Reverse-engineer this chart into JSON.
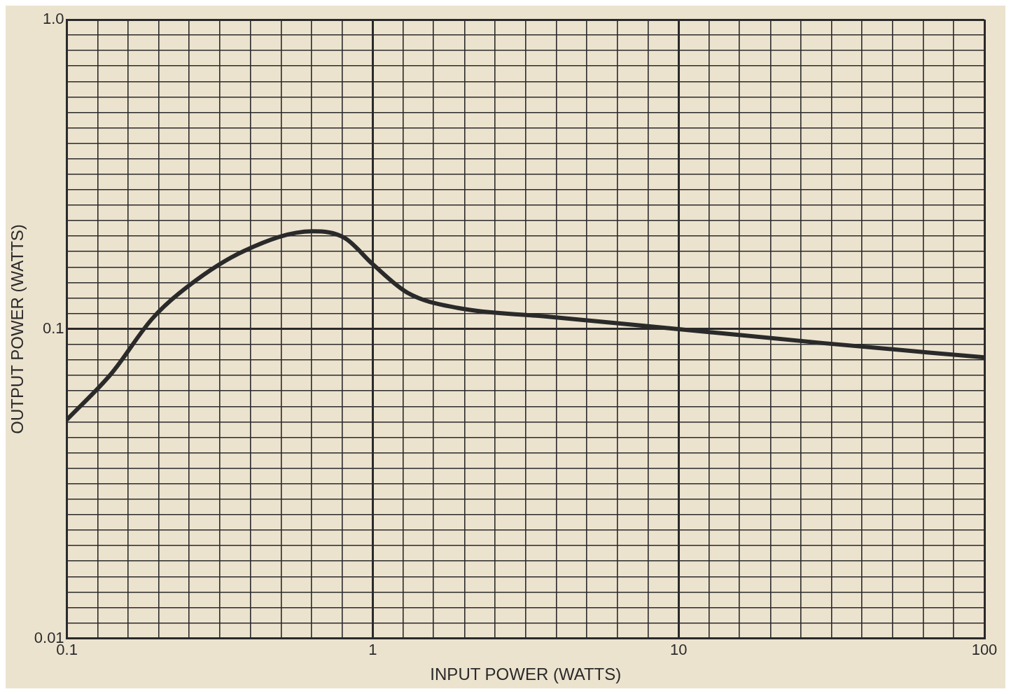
{
  "chart_data": {
    "type": "line",
    "xlabel": "INPUT POWER (WATTS)",
    "ylabel": "OUTPUT POWER (WATTS)",
    "log": "xy",
    "grid": true,
    "x": [
      0.1,
      0.14,
      0.19,
      0.25,
      0.38,
      0.635,
      0.81,
      1,
      1.3,
      1.9,
      3.6,
      10,
      30,
      100
    ],
    "series": [
      {
        "color": "#2a2a2a",
        "values": [
          0.051,
          0.072,
          0.108,
          0.138,
          0.179,
          0.207,
          0.197,
          0.162,
          0.131,
          0.117,
          0.11,
          0.1,
          0.09,
          0.081
        ]
      }
    ],
    "xlim": [
      0.1,
      100
    ],
    "xticks": [
      0.1,
      {
        "value": 0.126,
        "label": null
      },
      {
        "value": 0.158,
        "label": null
      },
      {
        "value": 0.2,
        "label": null
      },
      {
        "value": 0.251,
        "label": null
      },
      {
        "value": 0.316,
        "label": null
      },
      {
        "value": 0.398,
        "label": null
      },
      {
        "value": 0.501,
        "label": null
      },
      {
        "value": 0.631,
        "label": null
      },
      {
        "value": 0.794,
        "label": null
      },
      1,
      {
        "value": 1.26,
        "label": null
      },
      {
        "value": 1.58,
        "label": null
      },
      {
        "value": 2,
        "label": null
      },
      {
        "value": 2.51,
        "label": null
      },
      {
        "value": 3.16,
        "label": null
      },
      {
        "value": 3.98,
        "label": null
      },
      {
        "value": 5.01,
        "label": null
      },
      {
        "value": 6.31,
        "label": null
      },
      {
        "value": 7.94,
        "label": null
      },
      10,
      {
        "value": 12.6,
        "label": null
      },
      {
        "value": 15.8,
        "label": null
      },
      {
        "value": 20,
        "label": null
      },
      {
        "value": 25.1,
        "label": null
      },
      {
        "value": 31.6,
        "label": null
      },
      {
        "value": 39.8,
        "label": null
      },
      {
        "value": 50.1,
        "label": null
      },
      {
        "value": 63.1,
        "label": null
      },
      {
        "value": 79.4,
        "label": null
      },
      100
    ],
    "ylim": [
      0.01,
      1
    ],
    "yticks": [
      0.01,
      {
        "value": 0.0112,
        "label": null
      },
      {
        "value": 0.0126,
        "label": null
      },
      {
        "value": 0.0141,
        "label": null
      },
      {
        "value": 0.0158,
        "label": null
      },
      {
        "value": 0.0178,
        "label": null
      },
      {
        "value": 0.02,
        "label": null
      },
      {
        "value": 0.0224,
        "label": null
      },
      {
        "value": 0.0251,
        "label": null
      },
      {
        "value": 0.0282,
        "label": null
      },
      {
        "value": 0.0316,
        "label": null
      },
      {
        "value": 0.0355,
        "label": null
      },
      {
        "value": 0.0398,
        "label": null
      },
      {
        "value": 0.0447,
        "label": null
      },
      {
        "value": 0.0501,
        "label": null
      },
      {
        "value": 0.0562,
        "label": null
      },
      {
        "value": 0.0631,
        "label": null
      },
      {
        "value": 0.0708,
        "label": null
      },
      {
        "value": 0.0794,
        "label": null
      },
      {
        "value": 0.0891,
        "label": null
      },
      0.1,
      {
        "value": 0.112,
        "label": null
      },
      {
        "value": 0.126,
        "label": null
      },
      {
        "value": 0.141,
        "label": null
      },
      {
        "value": 0.158,
        "label": null
      },
      {
        "value": 0.178,
        "label": null
      },
      {
        "value": 0.2,
        "label": null
      },
      {
        "value": 0.224,
        "label": null
      },
      {
        "value": 0.251,
        "label": null
      },
      {
        "value": 0.282,
        "label": null
      },
      {
        "value": 0.316,
        "label": null
      },
      {
        "value": 0.355,
        "label": null
      },
      {
        "value": 0.398,
        "label": null
      },
      {
        "value": 0.447,
        "label": null
      },
      {
        "value": 0.501,
        "label": null
      },
      {
        "value": 0.562,
        "label": null
      },
      {
        "value": 0.631,
        "label": null
      },
      {
        "value": 0.708,
        "label": null
      },
      {
        "value": 0.794,
        "label": null
      },
      {
        "value": 0.891,
        "label": null
      },
      {
        "value": 1,
        "label": "1.0"
      }
    ]
  }
}
